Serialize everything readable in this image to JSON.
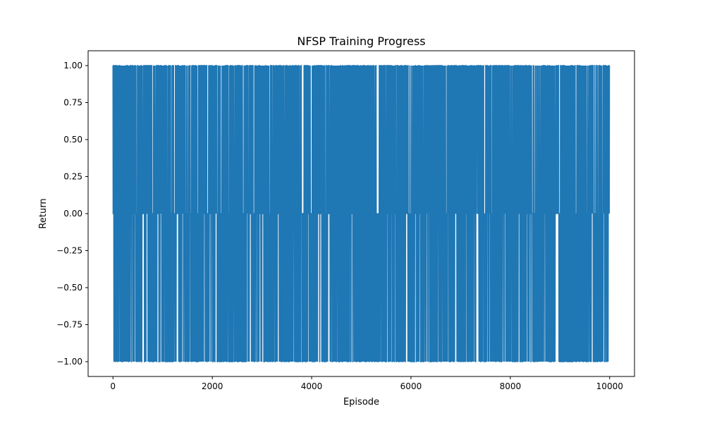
{
  "chart_data": {
    "type": "line",
    "title": "NFSP Training Progress",
    "xlabel": "Episode",
    "ylabel": "Return",
    "xlim": [
      -500,
      10500
    ],
    "ylim": [
      -1.1,
      1.1
    ],
    "x_ticks": [
      0,
      2000,
      4000,
      6000,
      8000,
      10000
    ],
    "y_ticks": [
      -1.0,
      -0.75,
      -0.5,
      -0.25,
      0.0,
      0.25,
      0.5,
      0.75,
      1.0
    ],
    "x_tick_labels": [
      "0",
      "2000",
      "4000",
      "6000",
      "8000",
      "10000"
    ],
    "y_tick_labels": [
      "−1.00",
      "−0.75",
      "−0.50",
      "−0.25",
      "0.00",
      "0.25",
      "0.50",
      "0.75",
      "1.00"
    ],
    "grid": false,
    "series": [
      {
        "color": "#1f77b4",
        "x_start": 0,
        "x_end": 10000,
        "possible_values": [
          -1,
          0,
          1
        ],
        "value_shares": {
          "-1": 0.3,
          "0": 0.35,
          "1": 0.35
        }
      }
    ]
  }
}
